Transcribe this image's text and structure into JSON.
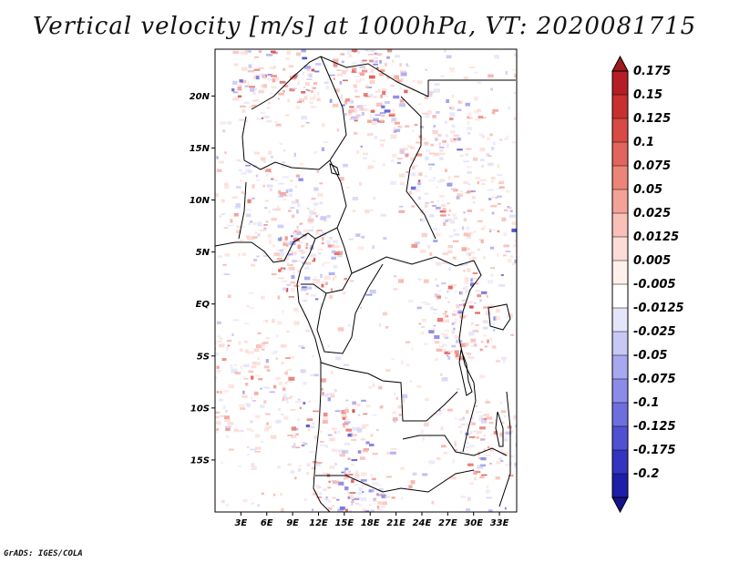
{
  "title": "Vertical velocity [m/s] at 1000hPa, VT: 2020081715",
  "footer": "GrADS: IGES/COLA",
  "map": {
    "region": "Central Africa",
    "lon_range": [
      0,
      35
    ],
    "lat_range": [
      -20,
      24.5
    ],
    "lat_ticks": [
      {
        "value": 20,
        "label": "20N"
      },
      {
        "value": 15,
        "label": "15N"
      },
      {
        "value": 10,
        "label": "10N"
      },
      {
        "value": 5,
        "label": "5N"
      },
      {
        "value": 0,
        "label": "EQ"
      },
      {
        "value": -5,
        "label": "5S"
      },
      {
        "value": -10,
        "label": "10S"
      },
      {
        "value": -15,
        "label": "15S"
      }
    ],
    "lon_ticks": [
      {
        "value": 3,
        "label": "3E"
      },
      {
        "value": 6,
        "label": "6E"
      },
      {
        "value": 9,
        "label": "9E"
      },
      {
        "value": 12,
        "label": "12E"
      },
      {
        "value": 15,
        "label": "15E"
      },
      {
        "value": 18,
        "label": "18E"
      },
      {
        "value": 21,
        "label": "21E"
      },
      {
        "value": 24,
        "label": "24E"
      },
      {
        "value": 27,
        "label": "27E"
      },
      {
        "value": 30,
        "label": "30E"
      },
      {
        "value": 33,
        "label": "33E"
      }
    ],
    "colorbar": [
      {
        "label": "0.175",
        "color": "#b41e24"
      },
      {
        "label": "0.15",
        "color": "#c8302f"
      },
      {
        "label": "0.125",
        "color": "#d84a44"
      },
      {
        "label": "0.1",
        "color": "#e2645c"
      },
      {
        "label": "0.075",
        "color": "#ec8478"
      },
      {
        "label": "0.05",
        "color": "#f4a298"
      },
      {
        "label": "0.025",
        "color": "#f8c0b8"
      },
      {
        "label": "0.0125",
        "color": "#fcdcd6"
      },
      {
        "label": "0.005",
        "color": "#fff0ec"
      },
      {
        "label": "-0.005",
        "color": "#ffffff"
      },
      {
        "label": "-0.0125",
        "color": "#e4e4fb"
      },
      {
        "label": "-0.025",
        "color": "#c8c8f6"
      },
      {
        "label": "-0.05",
        "color": "#a8a8f0"
      },
      {
        "label": "-0.075",
        "color": "#8c8ce8"
      },
      {
        "label": "-0.1",
        "color": "#6e6ede"
      },
      {
        "label": "-0.125",
        "color": "#5050d2"
      },
      {
        "label": "-0.175",
        "color": "#3434c0"
      },
      {
        "label": "-0.2",
        "color": "#1e1ea8"
      }
    ],
    "colorbar_top": "#a01a1e",
    "colorbar_bottom": "#14148c"
  }
}
